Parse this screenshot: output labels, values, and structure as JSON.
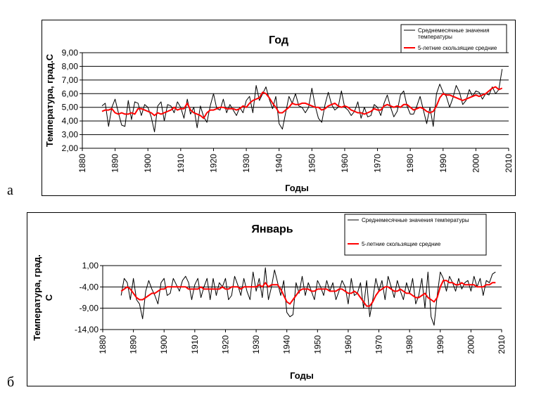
{
  "panels": {
    "a": "а",
    "b": "б"
  },
  "chart_data": [
    {
      "type": "line",
      "title": "Год",
      "xlabel": "Годы",
      "ylabel": "Температура, град.С",
      "xlim": [
        1880,
        2010
      ],
      "ylim": [
        2.0,
        9.0
      ],
      "xticks": [
        "1880",
        "1890",
        "1900",
        "1910",
        "1920",
        "1930",
        "1940",
        "1950",
        "1960",
        "1970",
        "1980",
        "1990",
        "2000",
        "2010"
      ],
      "yticks": [
        "2,00",
        "3,00",
        "4,00",
        "5,00",
        "6,00",
        "7,00",
        "8,00",
        "9,00"
      ],
      "grid": true,
      "legend": "top-right",
      "legend_entries": [
        "Среднемесячные значения температуры",
        "5-летние скользящие средние"
      ],
      "series": [
        {
          "name": "Среднемесячные значения температуры",
          "color": "#000000",
          "x": [
            1886,
            1887,
            1888,
            1889,
            1890,
            1891,
            1892,
            1893,
            1894,
            1895,
            1896,
            1897,
            1898,
            1899,
            1900,
            1901,
            1902,
            1903,
            1904,
            1905,
            1906,
            1907,
            1908,
            1909,
            1910,
            1911,
            1912,
            1913,
            1914,
            1915,
            1916,
            1917,
            1918,
            1919,
            1920,
            1921,
            1922,
            1923,
            1924,
            1925,
            1926,
            1927,
            1928,
            1929,
            1930,
            1931,
            1932,
            1933,
            1934,
            1935,
            1936,
            1937,
            1938,
            1939,
            1940,
            1941,
            1942,
            1943,
            1944,
            1945,
            1946,
            1947,
            1948,
            1949,
            1950,
            1951,
            1952,
            1953,
            1954,
            1955,
            1956,
            1957,
            1958,
            1959,
            1960,
            1961,
            1962,
            1963,
            1964,
            1965,
            1966,
            1967,
            1968,
            1969,
            1970,
            1971,
            1972,
            1973,
            1974,
            1975,
            1976,
            1977,
            1978,
            1979,
            1980,
            1981,
            1982,
            1983,
            1984,
            1985,
            1986,
            1987,
            1988,
            1989,
            1990,
            1991,
            1992,
            1993,
            1994,
            1995,
            1996,
            1997,
            1998,
            1999,
            2000,
            2001,
            2002,
            2003,
            2004,
            2005,
            2006,
            2007,
            2008
          ],
          "values": [
            5.1,
            5.3,
            3.6,
            5.0,
            5.6,
            4.6,
            3.7,
            3.6,
            5.5,
            4.1,
            5.4,
            5.3,
            4.4,
            5.2,
            5.0,
            4.3,
            3.2,
            5.1,
            5.4,
            4.0,
            5.2,
            5.1,
            4.6,
            5.4,
            5.0,
            4.2,
            5.6,
            4.5,
            5.0,
            3.5,
            5.1,
            4.3,
            3.9,
            5.1,
            6.0,
            4.9,
            4.8,
            5.6,
            4.6,
            5.2,
            4.8,
            4.4,
            5.0,
            4.6,
            5.5,
            5.8,
            4.6,
            6.6,
            5.5,
            6.0,
            6.5,
            5.6,
            4.9,
            5.8,
            3.8,
            3.4,
            4.6,
            5.8,
            5.3,
            6.0,
            5.1,
            5.0,
            4.6,
            5.0,
            6.4,
            5.1,
            4.2,
            3.9,
            5.2,
            6.1,
            5.2,
            4.8,
            5.0,
            6.2,
            5.0,
            4.8,
            4.4,
            4.7,
            5.4,
            4.2,
            5.0,
            4.3,
            4.4,
            5.2,
            5.0,
            4.4,
            5.3,
            5.9,
            5.0,
            4.3,
            4.7,
            5.9,
            6.2,
            5.1,
            4.5,
            4.5,
            5.1,
            5.8,
            4.8,
            3.8,
            5.0,
            3.6,
            6.0,
            6.7,
            6.1,
            5.8,
            5.0,
            5.7,
            6.6,
            6.1,
            5.2,
            5.5,
            6.3,
            5.8,
            6.2,
            6.1,
            5.6,
            6.0,
            5.9,
            6.5,
            6.0,
            6.3,
            7.8
          ]
        },
        {
          "name": "5-летние скользящие средние",
          "color": "#ff0000",
          "x": [
            1886,
            1887,
            1888,
            1889,
            1890,
            1891,
            1892,
            1893,
            1894,
            1895,
            1896,
            1897,
            1898,
            1899,
            1900,
            1901,
            1902,
            1903,
            1904,
            1905,
            1906,
            1907,
            1908,
            1909,
            1910,
            1911,
            1912,
            1913,
            1914,
            1915,
            1916,
            1917,
            1918,
            1919,
            1920,
            1921,
            1922,
            1923,
            1924,
            1925,
            1926,
            1927,
            1928,
            1929,
            1930,
            1931,
            1932,
            1933,
            1934,
            1935,
            1936,
            1937,
            1938,
            1939,
            1940,
            1941,
            1942,
            1943,
            1944,
            1945,
            1946,
            1947,
            1948,
            1949,
            1950,
            1951,
            1952,
            1953,
            1954,
            1955,
            1956,
            1957,
            1958,
            1959,
            1960,
            1961,
            1962,
            1963,
            1964,
            1965,
            1966,
            1967,
            1968,
            1969,
            1970,
            1971,
            1972,
            1973,
            1974,
            1975,
            1976,
            1977,
            1978,
            1979,
            1980,
            1981,
            1982,
            1983,
            1984,
            1985,
            1986,
            1987,
            1988,
            1989,
            1990,
            1991,
            1992,
            1993,
            1994,
            1995,
            1996,
            1997,
            1998,
            1999,
            2000,
            2001,
            2002,
            2003,
            2004,
            2005,
            2006,
            2007,
            2008
          ],
          "values": [
            4.7,
            4.8,
            4.8,
            4.9,
            4.6,
            4.5,
            4.6,
            4.5,
            4.5,
            4.6,
            4.5,
            4.9,
            4.9,
            4.8,
            4.7,
            4.6,
            4.4,
            4.6,
            4.5,
            4.6,
            4.7,
            4.8,
            5.0,
            4.8,
            4.9,
            4.9,
            5.3,
            4.8,
            4.6,
            4.5,
            4.4,
            4.2,
            4.6,
            4.8,
            4.8,
            4.9,
            5.0,
            5.0,
            4.9,
            4.9,
            4.9,
            4.8,
            4.9,
            5.1,
            5.0,
            5.3,
            5.5,
            5.6,
            5.7,
            6.1,
            6.0,
            5.7,
            5.3,
            5.0,
            4.6,
            4.6,
            4.8,
            5.0,
            5.3,
            5.2,
            5.2,
            5.3,
            5.3,
            5.2,
            5.1,
            5.0,
            5.0,
            4.8,
            4.9,
            5.1,
            5.2,
            5.3,
            5.1,
            5.0,
            5.1,
            5.0,
            4.8,
            4.7,
            4.6,
            4.6,
            4.5,
            4.6,
            4.7,
            4.9,
            4.8,
            4.8,
            5.1,
            5.2,
            5.1,
            5.0,
            5.1,
            5.0,
            5.2,
            5.2,
            5.0,
            4.8,
            4.9,
            5.0,
            4.9,
            4.7,
            4.6,
            4.7,
            5.1,
            5.7,
            6.0,
            5.9,
            5.9,
            5.8,
            5.7,
            5.6,
            5.5,
            5.6,
            5.7,
            5.8,
            5.9,
            5.8,
            5.9,
            6.0,
            6.2,
            6.4,
            6.5,
            6.3,
            6.4
          ]
        }
      ]
    },
    {
      "type": "line",
      "title": "Январь",
      "xlabel": "Годы",
      "ylabel": "Температура, град. С",
      "xlim": [
        1880,
        2010
      ],
      "ylim": [
        -14.0,
        1.0
      ],
      "xticks": [
        "1880",
        "1890",
        "1900",
        "1910",
        "1920",
        "1930",
        "1940",
        "1950",
        "1960",
        "1970",
        "1980",
        "1990",
        "2000",
        "2010"
      ],
      "yticks": [
        "-14,00",
        "-9,00",
        "-4,00",
        "1,00"
      ],
      "grid": true,
      "legend": "top-right",
      "legend_entries": [
        "Среднемесячные значения температуры",
        "5-летние скользящие средние"
      ],
      "series": [
        {
          "name": "Среднемесячные значения температуры",
          "color": "#000000",
          "x": [
            1886,
            1887,
            1888,
            1889,
            1890,
            1891,
            1892,
            1893,
            1894,
            1895,
            1896,
            1897,
            1898,
            1899,
            1900,
            1901,
            1902,
            1903,
            1904,
            1905,
            1906,
            1907,
            1908,
            1909,
            1910,
            1911,
            1912,
            1913,
            1914,
            1915,
            1916,
            1917,
            1918,
            1919,
            1920,
            1921,
            1922,
            1923,
            1924,
            1925,
            1926,
            1927,
            1928,
            1929,
            1930,
            1931,
            1932,
            1933,
            1934,
            1935,
            1936,
            1937,
            1938,
            1939,
            1940,
            1941,
            1942,
            1943,
            1944,
            1945,
            1946,
            1947,
            1948,
            1949,
            1950,
            1951,
            1952,
            1953,
            1954,
            1955,
            1956,
            1957,
            1958,
            1959,
            1960,
            1961,
            1962,
            1963,
            1964,
            1965,
            1966,
            1967,
            1968,
            1969,
            1970,
            1971,
            1972,
            1973,
            1974,
            1975,
            1976,
            1977,
            1978,
            1979,
            1980,
            1981,
            1982,
            1983,
            1984,
            1985,
            1986,
            1987,
            1988,
            1989,
            1990,
            1991,
            1992,
            1993,
            1994,
            1995,
            1996,
            1997,
            1998,
            1999,
            2000,
            2001,
            2002,
            2003,
            2004,
            2005,
            2006,
            2007,
            2008
          ],
          "values": [
            -6.0,
            -2.0,
            -3.0,
            -7.0,
            -2.0,
            -7.0,
            -8.0,
            -11.5,
            -5.0,
            -2.5,
            -4.5,
            -6.0,
            -8.0,
            -3.0,
            -2.0,
            -6.0,
            -5.5,
            -2.0,
            -3.5,
            -5.0,
            -2.5,
            -1.5,
            -3.0,
            -7.0,
            -3.5,
            -2.0,
            -6.5,
            -4.0,
            -2.0,
            -7.0,
            -2.0,
            -6.0,
            -3.0,
            -4.0,
            -2.0,
            -7.0,
            -6.0,
            -1.5,
            -3.5,
            -6.0,
            -2.0,
            -5.0,
            -7.0,
            -0.5,
            -5.0,
            -2.0,
            -6.5,
            0.5,
            -7.0,
            -4.0,
            0.0,
            -3.0,
            -6.0,
            -2.5,
            -10.0,
            -11.0,
            -10.5,
            -3.0,
            -5.5,
            -1.5,
            -6.0,
            -3.0,
            -5.0,
            -7.0,
            -2.5,
            -4.0,
            -6.0,
            -2.5,
            -5.0,
            -3.0,
            -7.0,
            -5.0,
            -2.5,
            -4.0,
            -8.0,
            -2.0,
            -6.0,
            -5.5,
            -3.0,
            -9.0,
            -2.5,
            -11.0,
            -7.0,
            -2.0,
            -5.0,
            -2.5,
            -7.0,
            -1.5,
            -4.0,
            -6.5,
            -2.5,
            -5.0,
            -7.0,
            -3.0,
            -5.5,
            -2.0,
            -8.0,
            -6.0,
            -2.0,
            -9.0,
            -0.5,
            -11.0,
            -13.0,
            -6.0,
            -0.5,
            -2.0,
            -5.0,
            -1.5,
            -3.0,
            -5.0,
            -2.0,
            -4.5,
            -3.0,
            -2.5,
            -5.0,
            -1.5,
            -4.0,
            -2.0,
            -6.0,
            -2.5,
            -3.0,
            -1.0,
            -0.5
          ]
        },
        {
          "name": "5-летние скользящие средние",
          "color": "#ff0000",
          "x": [
            1886,
            1887,
            1888,
            1889,
            1890,
            1891,
            1892,
            1893,
            1894,
            1895,
            1896,
            1897,
            1898,
            1899,
            1900,
            1901,
            1902,
            1903,
            1904,
            1905,
            1906,
            1907,
            1908,
            1909,
            1910,
            1911,
            1912,
            1913,
            1914,
            1915,
            1916,
            1917,
            1918,
            1919,
            1920,
            1921,
            1922,
            1923,
            1924,
            1925,
            1926,
            1927,
            1928,
            1929,
            1930,
            1931,
            1932,
            1933,
            1934,
            1935,
            1936,
            1937,
            1938,
            1939,
            1940,
            1941,
            1942,
            1943,
            1944,
            1945,
            1946,
            1947,
            1948,
            1949,
            1950,
            1951,
            1952,
            1953,
            1954,
            1955,
            1956,
            1957,
            1958,
            1959,
            1960,
            1961,
            1962,
            1963,
            1964,
            1965,
            1966,
            1967,
            1968,
            1969,
            1970,
            1971,
            1972,
            1973,
            1974,
            1975,
            1976,
            1977,
            1978,
            1979,
            1980,
            1981,
            1982,
            1983,
            1984,
            1985,
            1986,
            1987,
            1988,
            1989,
            1990,
            1991,
            1992,
            1993,
            1994,
            1995,
            1996,
            1997,
            1998,
            1999,
            2000,
            2001,
            2002,
            2003,
            2004,
            2005,
            2006,
            2007,
            2008
          ],
          "values": [
            -5.0,
            -4.5,
            -4.0,
            -4.5,
            -5.5,
            -6.5,
            -7.0,
            -7.0,
            -6.5,
            -6.0,
            -5.5,
            -5.5,
            -5.0,
            -4.5,
            -4.5,
            -4.0,
            -4.0,
            -4.0,
            -4.0,
            -4.0,
            -4.0,
            -4.0,
            -4.5,
            -4.5,
            -4.5,
            -4.5,
            -4.0,
            -4.5,
            -4.5,
            -4.5,
            -4.5,
            -4.5,
            -4.5,
            -4.0,
            -4.5,
            -4.5,
            -4.0,
            -4.0,
            -4.0,
            -4.5,
            -4.0,
            -4.0,
            -4.0,
            -4.0,
            -4.0,
            -3.5,
            -4.0,
            -3.0,
            -4.0,
            -3.5,
            -3.5,
            -3.5,
            -4.5,
            -6.0,
            -7.5,
            -8.0,
            -7.0,
            -6.0,
            -5.0,
            -4.5,
            -4.5,
            -4.5,
            -5.0,
            -5.0,
            -4.5,
            -4.5,
            -4.5,
            -4.5,
            -5.0,
            -5.0,
            -5.0,
            -4.5,
            -4.5,
            -5.0,
            -5.5,
            -5.5,
            -5.0,
            -5.5,
            -6.5,
            -7.5,
            -8.5,
            -8.5,
            -7.5,
            -6.0,
            -5.0,
            -4.5,
            -4.0,
            -4.0,
            -4.5,
            -5.0,
            -5.0,
            -4.5,
            -5.0,
            -5.5,
            -5.5,
            -6.0,
            -6.5,
            -6.5,
            -6.0,
            -5.5,
            -6.5,
            -7.0,
            -7.5,
            -6.5,
            -4.0,
            -2.5,
            -2.5,
            -3.0,
            -3.0,
            -3.5,
            -3.5,
            -3.0,
            -3.5,
            -3.5,
            -3.5,
            -3.5,
            -4.0,
            -4.0,
            -4.0,
            -3.5,
            -3.5,
            -3.0,
            -3.0
          ]
        }
      ]
    }
  ]
}
